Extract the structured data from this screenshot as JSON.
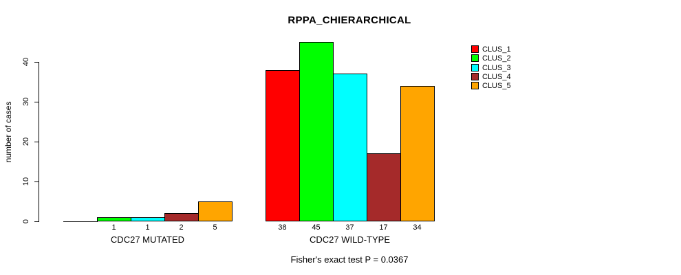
{
  "chart_data": {
    "type": "bar",
    "title": "RPPA_CHIERARCHICAL",
    "ylabel": "number of cases",
    "xlabel": "",
    "footnote": "Fisher's exact test P = 0.0367",
    "yticks": [
      0,
      10,
      20,
      30,
      40
    ],
    "ylim": [
      0,
      45
    ],
    "grid": false,
    "legend_position": "top-right",
    "legend_swatch_border_color": "#000000",
    "bar_border_color": "#000000",
    "series": [
      {
        "name": "CLUS_1",
        "color": "#FF0000"
      },
      {
        "name": "CLUS_2",
        "color": "#00FF00"
      },
      {
        "name": "CLUS_3",
        "color": "#00FFFF"
      },
      {
        "name": "CLUS_4",
        "color": "#A52A2A"
      },
      {
        "name": "CLUS_5",
        "color": "#FFA500"
      }
    ],
    "categories": [
      "CDC27 MUTATED",
      "CDC27 WILD-TYPE"
    ],
    "groups": [
      {
        "label": "CDC27 MUTATED",
        "values": [
          0,
          1,
          1,
          2,
          5
        ],
        "bar_labels": [
          "",
          "1",
          "1",
          "2",
          "5"
        ]
      },
      {
        "label": "CDC27 WILD-TYPE",
        "values": [
          38,
          45,
          37,
          17,
          34
        ],
        "bar_labels": [
          "38",
          "45",
          "37",
          "17",
          "34"
        ]
      }
    ]
  }
}
